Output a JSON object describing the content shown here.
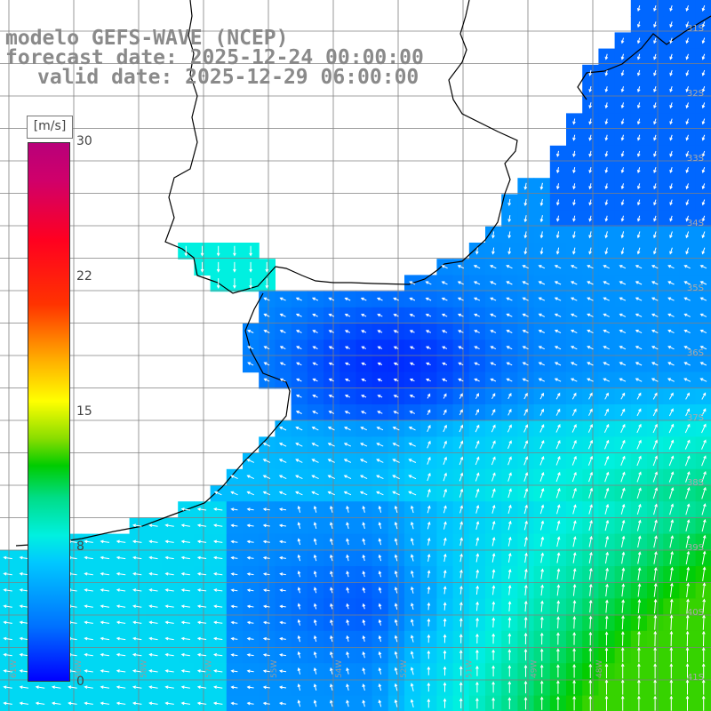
{
  "header": {
    "model_line": "modelo GEFS-WAVE (NCEP)",
    "forecast_line": "forecast date: 2025-12-24 00:00:00",
    "valid_line": "valid date: 2025-12-29 06:00:00"
  },
  "colorbar": {
    "unit": "[m/s]",
    "ticks": [
      "30",
      "22",
      "15",
      "8",
      "0"
    ],
    "range": [
      0,
      30
    ],
    "colors": [
      "#0000ff",
      "#0070ff",
      "#00c8ff",
      "#00f0e0",
      "#00dd88",
      "#00cc00",
      "#88dd00",
      "#ffff00",
      "#ffaa00",
      "#ff3300",
      "#ff0020",
      "#d0006a",
      "#b8007a"
    ]
  },
  "map": {
    "land_color": "#ffffff",
    "coast_color": "#000000",
    "grid_color": "#808080",
    "arrow_color": "#ffffff",
    "longitude_labels": [
      "61W",
      "60W",
      "58W",
      "57W",
      "55W",
      "54W",
      "52W",
      "51W",
      "49W",
      "48W"
    ],
    "latitude_labels": [
      "31S",
      "32S",
      "33S",
      "34S",
      "35S",
      "36S",
      "37S",
      "38S",
      "39S",
      "40S",
      "41S"
    ]
  }
}
